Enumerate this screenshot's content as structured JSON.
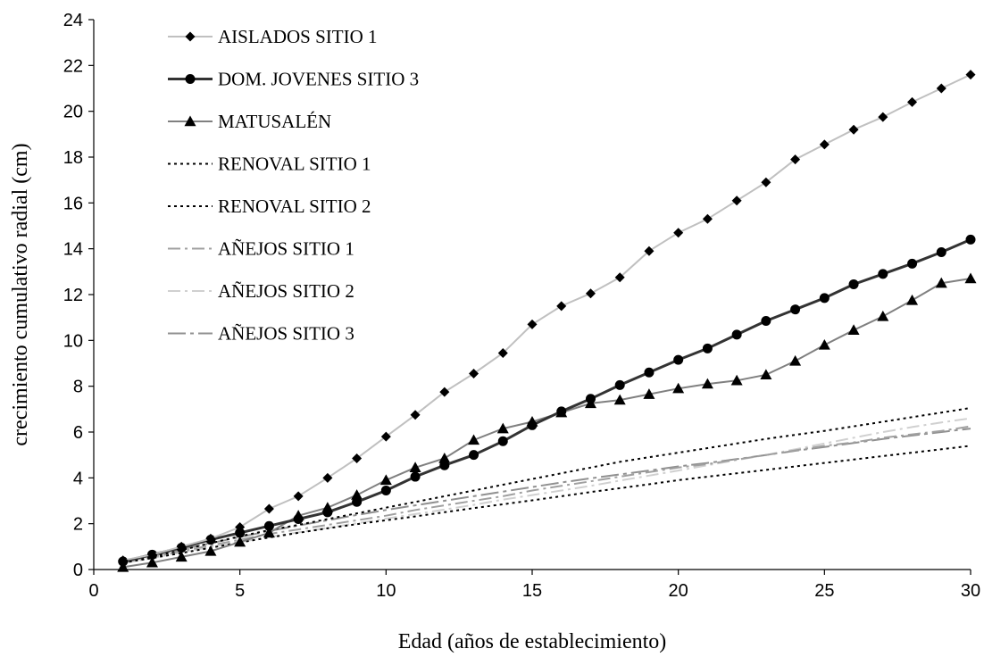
{
  "chart_data": {
    "type": "line",
    "title": "",
    "xlabel": "Edad (años de establecimiento)",
    "ylabel": "crecimiento cumulativo radial (cm)",
    "xlim": [
      0,
      30
    ],
    "ylim": [
      0,
      24
    ],
    "xticks": [
      0,
      5,
      10,
      15,
      20,
      25,
      30
    ],
    "yticks": [
      0,
      2,
      4,
      6,
      8,
      10,
      12,
      14,
      16,
      18,
      20,
      22,
      24
    ],
    "grid": false,
    "legend_position": "top-left",
    "x": [
      1,
      2,
      3,
      4,
      5,
      6,
      7,
      8,
      9,
      10,
      11,
      12,
      13,
      14,
      15,
      16,
      17,
      18,
      19,
      20,
      21,
      22,
      23,
      24,
      25,
      26,
      27,
      28,
      29,
      30
    ],
    "series": [
      {
        "name": "AISLADOS SITIO 1",
        "color": "#c0c0c0",
        "marker": "diamond",
        "dash": "solid",
        "values": [
          0.4,
          0.65,
          1.0,
          1.35,
          1.85,
          2.65,
          3.2,
          4.0,
          4.85,
          5.8,
          6.75,
          7.75,
          8.55,
          9.45,
          10.7,
          11.5,
          12.05,
          12.75,
          13.9,
          14.7,
          15.3,
          16.1,
          16.9,
          17.9,
          18.55,
          19.2,
          19.75,
          20.4,
          21.0,
          21.6
        ]
      },
      {
        "name": "DOM. JOVENES SITIO 3",
        "color": "#333333",
        "marker": "circle",
        "dash": "solid",
        "values": [
          0.35,
          0.65,
          0.95,
          1.3,
          1.6,
          1.9,
          2.2,
          2.5,
          2.95,
          3.45,
          4.05,
          4.55,
          5.0,
          5.6,
          6.3,
          6.9,
          7.45,
          8.05,
          8.6,
          9.15,
          9.65,
          10.25,
          10.85,
          11.35,
          11.85,
          12.45,
          12.9,
          13.35,
          13.85,
          14.4
        ]
      },
      {
        "name": "MATUSALÉN",
        "color": "#808080",
        "marker": "triangle",
        "dash": "solid",
        "values": [
          0.1,
          0.3,
          0.55,
          0.8,
          1.2,
          1.6,
          2.35,
          2.7,
          3.25,
          3.9,
          4.45,
          4.85,
          5.65,
          6.15,
          6.45,
          6.85,
          7.25,
          7.4,
          7.65,
          7.9,
          8.1,
          8.25,
          8.5,
          9.1,
          9.8,
          10.45,
          11.05,
          11.75,
          12.5,
          12.7
        ]
      },
      {
        "name": "RENOVAL SITIO 1",
        "color": "#000000",
        "marker": "none",
        "dash": "dotted",
        "values": [
          0.3,
          0.5,
          0.72,
          0.95,
          1.18,
          1.4,
          1.6,
          1.8,
          1.98,
          2.15,
          2.32,
          2.5,
          2.68,
          2.85,
          3.02,
          3.2,
          3.38,
          3.55,
          3.72,
          3.9,
          4.05,
          4.2,
          4.35,
          4.5,
          4.65,
          4.8,
          4.95,
          5.1,
          5.25,
          5.4
        ]
      },
      {
        "name": "RENOVAL SITIO 2",
        "color": "#000000",
        "marker": "none",
        "dash": "dotted",
        "values": [
          0.3,
          0.55,
          0.85,
          1.15,
          1.45,
          1.72,
          1.95,
          2.2,
          2.45,
          2.7,
          2.95,
          3.2,
          3.45,
          3.7,
          3.95,
          4.2,
          4.45,
          4.7,
          4.9,
          5.1,
          5.3,
          5.5,
          5.7,
          5.88,
          6.05,
          6.25,
          6.45,
          6.65,
          6.85,
          7.05
        ]
      },
      {
        "name": "AÑEJOS SITIO 1",
        "color": "#a0a0a0",
        "marker": "none",
        "dash": "dashdot",
        "values": [
          0.3,
          0.55,
          0.8,
          1.05,
          1.3,
          1.55,
          1.75,
          1.95,
          2.15,
          2.35,
          2.6,
          2.8,
          3.0,
          3.2,
          3.45,
          3.65,
          3.85,
          4.05,
          4.25,
          4.45,
          4.6,
          4.8,
          5.0,
          5.2,
          5.4,
          5.55,
          5.75,
          5.9,
          6.05,
          6.25
        ]
      },
      {
        "name": "AÑEJOS SITIO 2",
        "color": "#d0d0d0",
        "marker": "none",
        "dash": "dashdot",
        "values": [
          0.28,
          0.5,
          0.75,
          0.98,
          1.2,
          1.42,
          1.62,
          1.82,
          2.02,
          2.22,
          2.42,
          2.62,
          2.82,
          3.05,
          3.25,
          3.45,
          3.65,
          3.88,
          4.1,
          4.32,
          4.55,
          4.78,
          5.0,
          5.25,
          5.5,
          5.75,
          6.0,
          6.22,
          6.42,
          6.6
        ]
      },
      {
        "name": "AÑEJOS SITIO 3",
        "color": "#909090",
        "marker": "none",
        "dash": "longdashdot",
        "values": [
          0.32,
          0.6,
          0.88,
          1.15,
          1.42,
          1.68,
          1.92,
          2.15,
          2.38,
          2.6,
          2.8,
          3.0,
          3.2,
          3.4,
          3.6,
          3.8,
          3.98,
          4.15,
          4.32,
          4.5,
          4.65,
          4.82,
          5.0,
          5.18,
          5.35,
          5.52,
          5.7,
          5.85,
          6.0,
          6.15
        ]
      }
    ]
  }
}
